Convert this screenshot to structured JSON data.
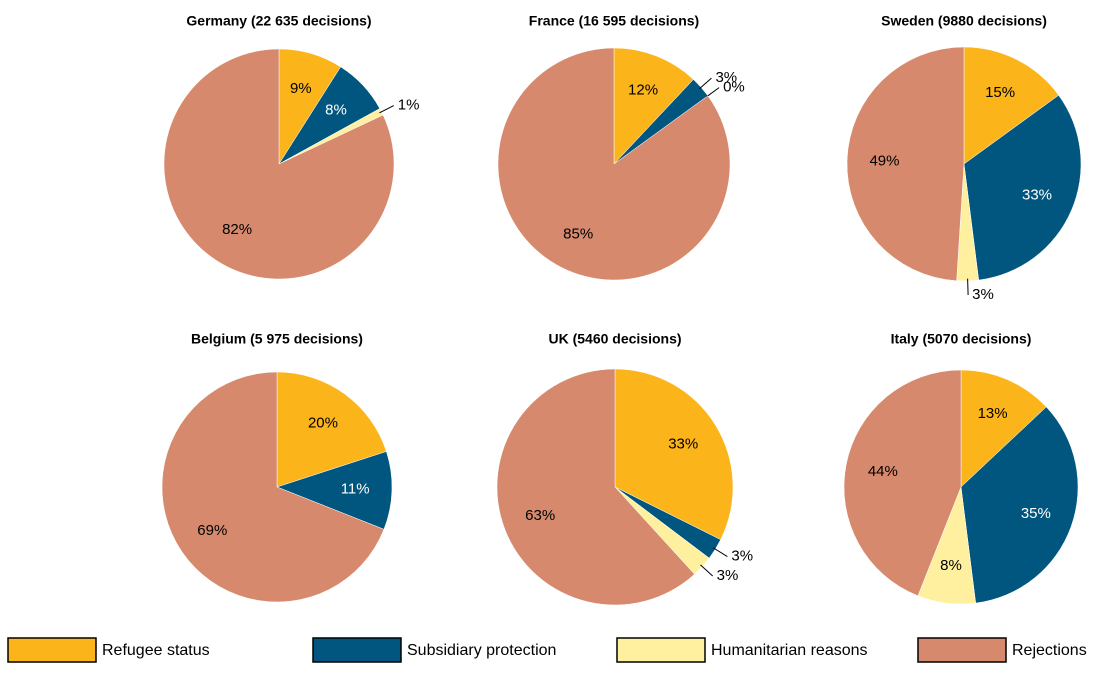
{
  "legend": {
    "labels": [
      "Refugee status",
      "Subsidiary protection",
      "Humanitarian reasons",
      "Rejections"
    ],
    "colors": [
      "#fbb41a",
      "#00567f",
      "#fff0a0",
      "#d6896c"
    ]
  },
  "chart_data": [
    {
      "type": "pie",
      "title": "Germany (22 635 decisions)",
      "values": [
        9,
        8,
        1,
        82
      ],
      "value_labels": [
        "9%",
        "8%",
        "1%",
        "82%"
      ]
    },
    {
      "type": "pie",
      "title": "France (16 595 decisions)",
      "values": [
        12,
        3,
        0,
        85
      ],
      "value_labels": [
        "12%",
        "3%",
        "0%",
        "85%"
      ]
    },
    {
      "type": "pie",
      "title": "Sweden (9880 decisions)",
      "values": [
        15,
        33,
        3,
        49
      ],
      "value_labels": [
        "15%",
        "33%",
        "3%",
        "49%"
      ]
    },
    {
      "type": "pie",
      "title": "Belgium (5 975 decisions)",
      "values": [
        20,
        11,
        null,
        69
      ],
      "value_labels": [
        "20%",
        "11%",
        null,
        "69%"
      ]
    },
    {
      "type": "pie",
      "title": "UK (5460 decisions)",
      "values": [
        33,
        3,
        3,
        63
      ],
      "value_labels": [
        "33%",
        "3%",
        "3%",
        "63%"
      ]
    },
    {
      "type": "pie",
      "title": "Italy (5070 decisions)",
      "values": [
        13,
        35,
        8,
        44
      ],
      "value_labels": [
        "13%",
        "35%",
        "8%",
        "44%"
      ]
    }
  ]
}
